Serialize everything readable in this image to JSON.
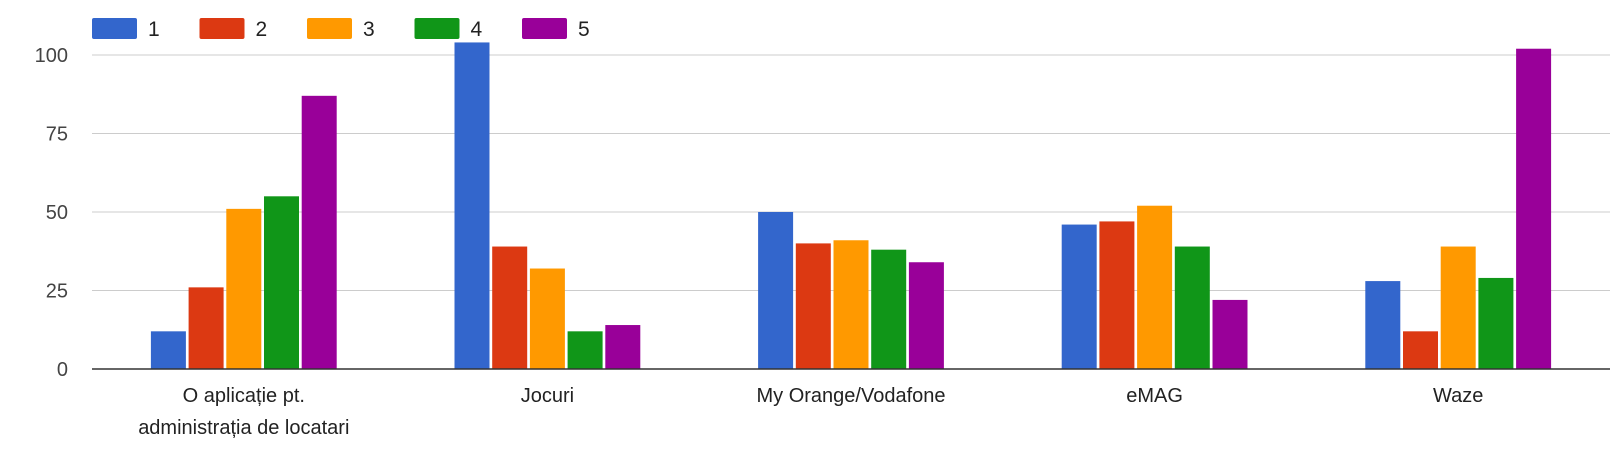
{
  "chart_data": {
    "type": "bar",
    "categories": [
      [
        "O aplicație pt.",
        "administrația de locatari"
      ],
      [
        "Jocuri"
      ],
      [
        "My Orange/Vodafone"
      ],
      [
        "eMAG"
      ],
      [
        "Waze"
      ]
    ],
    "series": [
      {
        "name": "1",
        "color": "#3366cc",
        "values": [
          12,
          104,
          50,
          46,
          28
        ]
      },
      {
        "name": "2",
        "color": "#dc3912",
        "values": [
          26,
          39,
          40,
          47,
          12
        ]
      },
      {
        "name": "3",
        "color": "#ff9900",
        "values": [
          51,
          32,
          41,
          52,
          39
        ]
      },
      {
        "name": "4",
        "color": "#109618",
        "values": [
          55,
          12,
          38,
          39,
          29
        ]
      },
      {
        "name": "5",
        "color": "#990099",
        "values": [
          87,
          14,
          34,
          22,
          102
        ]
      }
    ],
    "yticks": [
      0,
      25,
      50,
      75,
      100
    ],
    "ylim": [
      0,
      100
    ],
    "grid": true,
    "legend_position": "top-left",
    "title": "",
    "xlabel": "",
    "ylabel": ""
  }
}
